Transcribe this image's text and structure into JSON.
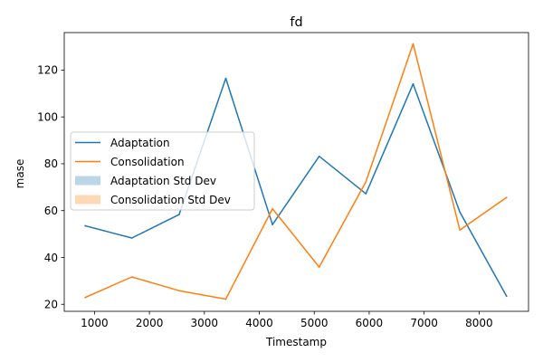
{
  "chart_data": {
    "type": "line",
    "title": "fd",
    "xlabel": "Timestamp",
    "ylabel": "mase",
    "xlim": [
      450,
      8900
    ],
    "ylim": [
      17,
      136
    ],
    "xticks": [
      1000,
      2000,
      3000,
      4000,
      5000,
      6000,
      7000,
      8000
    ],
    "yticks": [
      20,
      40,
      60,
      80,
      100,
      120
    ],
    "grid": false,
    "legend_position": "center-left",
    "x": [
      830,
      1680,
      2540,
      3390,
      4240,
      5090,
      5940,
      6800,
      7650,
      8500
    ],
    "series": [
      {
        "name": "Adaptation",
        "color": "#1f77b4",
        "values": [
          53.5,
          48.3,
          58.3,
          116.5,
          54.0,
          83.2,
          67.2,
          114.1,
          59.4,
          23.5
        ]
      },
      {
        "name": "Consolidation",
        "color": "#ff7f0e",
        "values": [
          22.9,
          31.7,
          25.8,
          22.2,
          60.8,
          35.9,
          72.3,
          131.2,
          51.7,
          65.6
        ]
      }
    ],
    "bands": [
      {
        "name": "Adaptation Std Dev",
        "color": "#1f77b4",
        "opacity": 0.3
      },
      {
        "name": "Consolidation Std Dev",
        "color": "#ff7f0e",
        "opacity": 0.3
      }
    ]
  }
}
